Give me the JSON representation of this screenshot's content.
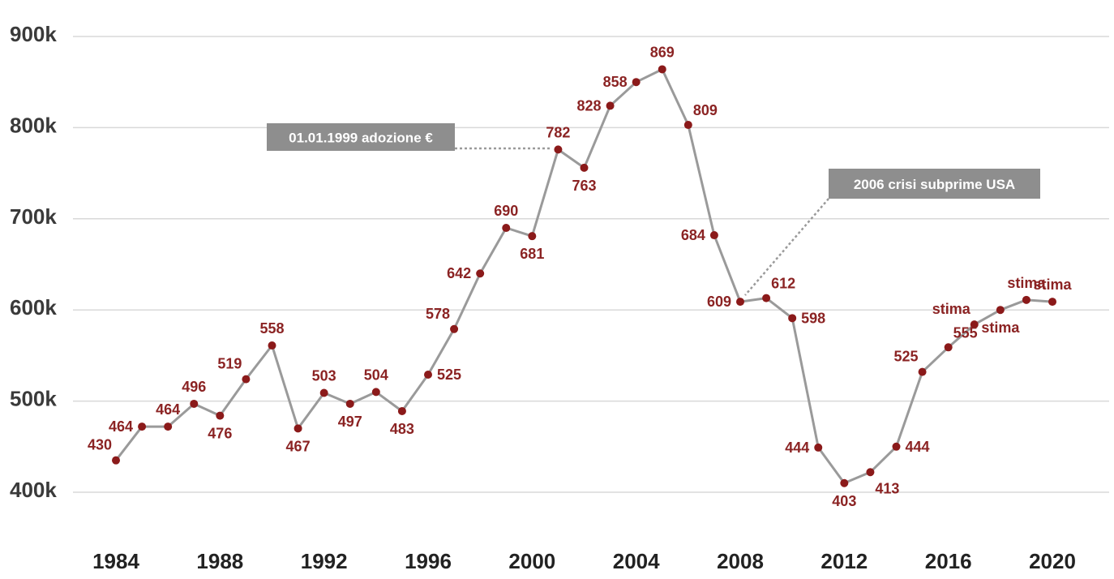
{
  "chart_data": {
    "type": "line",
    "title": "",
    "xlabel": "",
    "ylabel": "",
    "ylim": [
      400000,
      900000
    ],
    "xlim": [
      1984,
      2021
    ],
    "y_ticks": [
      {
        "value": 400000,
        "label": "400k"
      },
      {
        "value": 500000,
        "label": "500k"
      },
      {
        "value": 600000,
        "label": "600k"
      },
      {
        "value": 700000,
        "label": "700k"
      },
      {
        "value": 800000,
        "label": "800k"
      },
      {
        "value": 900000,
        "label": "900k"
      }
    ],
    "x_ticks": [
      "1984",
      "1988",
      "1992",
      "1996",
      "2000",
      "2004",
      "2008",
      "2012",
      "2016",
      "2020"
    ],
    "grid": "horizontal",
    "colors": {
      "line": "#9a9a9a",
      "marker": "#8b1a1a",
      "label": "#8b2323",
      "grid": "#d9d9d9",
      "note_bg": "#8e8e8e"
    },
    "series": [
      {
        "points": [
          {
            "x": 1984,
            "y": 435000,
            "label": "430",
            "pos": "tl"
          },
          {
            "x": 1985,
            "y": 472000,
            "label": "464",
            "pos": "l"
          },
          {
            "x": 1986,
            "y": 472000,
            "label": "464",
            "pos": "t"
          },
          {
            "x": 1987,
            "y": 497000,
            "label": "496",
            "pos": "t"
          },
          {
            "x": 1988,
            "y": 484000,
            "label": "476",
            "pos": "b"
          },
          {
            "x": 1989,
            "y": 524000,
            "label": "519",
            "pos": "tl"
          },
          {
            "x": 1990,
            "y": 561000,
            "label": "558",
            "pos": "t"
          },
          {
            "x": 1991,
            "y": 470000,
            "label": "467",
            "pos": "b"
          },
          {
            "x": 1992,
            "y": 509000,
            "label": "503",
            "pos": "t"
          },
          {
            "x": 1993,
            "y": 497000,
            "label": "497",
            "pos": "b"
          },
          {
            "x": 1994,
            "y": 510000,
            "label": "504",
            "pos": "t"
          },
          {
            "x": 1995,
            "y": 489000,
            "label": "483",
            "pos": "b"
          },
          {
            "x": 1996,
            "y": 529000,
            "label": "525",
            "pos": "r"
          },
          {
            "x": 1997,
            "y": 579000,
            "label": "578",
            "pos": "tl"
          },
          {
            "x": 1998,
            "y": 640000,
            "label": "642",
            "pos": "l"
          },
          {
            "x": 1999,
            "y": 690000,
            "label": "690",
            "pos": "t"
          },
          {
            "x": 2000,
            "y": 681000,
            "label": "681",
            "pos": "b"
          },
          {
            "x": 2001,
            "y": 776000,
            "label": "782",
            "pos": "t"
          },
          {
            "x": 2002,
            "y": 756000,
            "label": "763",
            "pos": "b"
          },
          {
            "x": 2003,
            "y": 824000,
            "label": "828",
            "pos": "l"
          },
          {
            "x": 2004,
            "y": 850000,
            "label": "858",
            "pos": "l"
          },
          {
            "x": 2005,
            "y": 864000,
            "label": "869",
            "pos": "t"
          },
          {
            "x": 2006,
            "y": 803000,
            "label": "809",
            "pos": "tr"
          },
          {
            "x": 2007,
            "y": 682000,
            "label": "684",
            "pos": "l"
          },
          {
            "x": 2008,
            "y": 609000,
            "label": "609",
            "pos": "l"
          },
          {
            "x": 2009,
            "y": 613000,
            "label": "612",
            "pos": "tr"
          },
          {
            "x": 2010,
            "y": 591000,
            "label": "598",
            "pos": "r"
          },
          {
            "x": 2011,
            "y": 449000,
            "label": "444",
            "pos": "l"
          },
          {
            "x": 2012,
            "y": 410000,
            "label": "403",
            "pos": "b"
          },
          {
            "x": 2013,
            "y": 422000,
            "label": "413",
            "pos": "br"
          },
          {
            "x": 2014,
            "y": 450000,
            "label": "444",
            "pos": "r"
          },
          {
            "x": 2015,
            "y": 532000,
            "label": "525",
            "pos": "tl"
          },
          {
            "x": 2016,
            "y": 559000,
            "label": "555",
            "pos": "tr"
          },
          {
            "x": 2017,
            "y": 584000,
            "label": "stima",
            "pos": "tl"
          },
          {
            "x": 2018,
            "y": 600000,
            "label": "stima",
            "pos": "b"
          },
          {
            "x": 2019,
            "y": 611000,
            "label": "stima",
            "pos": "t"
          },
          {
            "x": 2020,
            "y": 609000,
            "label": "stima",
            "pos": "t"
          }
        ]
      }
    ],
    "annotations": [
      {
        "text": "01.01.1999 adozione €",
        "points_to_x": 2001
      },
      {
        "text": "2006 crisi subprime USA",
        "points_to_x": 2008
      }
    ]
  }
}
